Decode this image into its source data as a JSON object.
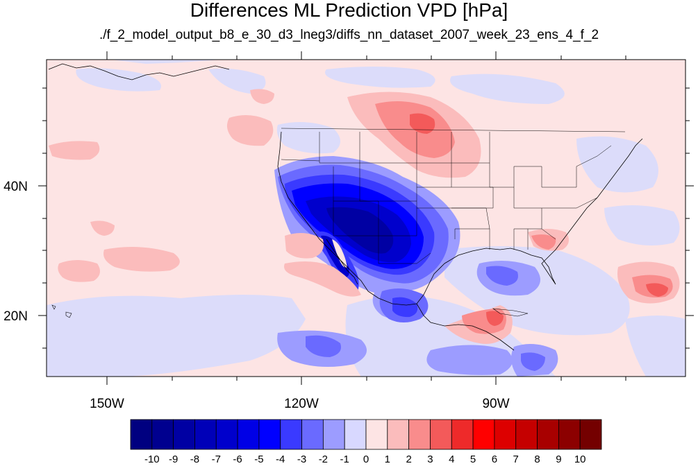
{
  "title": "Differences ML Prediction VPD [hPa]",
  "subtitle": "./f_2_model_output_b8_e_30_d3_lneg3/diffs_nn_dataset_2007_week_23_ens_4_f_2",
  "map": {
    "x_ticks": [
      "150W",
      "120W",
      "90W"
    ],
    "y_ticks": [
      "40N",
      "20N"
    ],
    "background_color": "#fde4e4"
  },
  "colorbar": {
    "labels": [
      "-10",
      "-9",
      "-8",
      "-7",
      "-6",
      "-5",
      "-4",
      "-3",
      "-2",
      "-1",
      "0",
      "1",
      "2",
      "3",
      "4",
      "5",
      "6",
      "7",
      "8",
      "9",
      "10"
    ],
    "colors": [
      "#000080",
      "#00008f",
      "#0000a3",
      "#0000b8",
      "#0000cc",
      "#0000e6",
      "#0000ff",
      "#3a3aff",
      "#6a6aff",
      "#9c9cff",
      "#d8d8ff",
      "#fde4e4",
      "#fbbcbc",
      "#f98c8c",
      "#f35a5a",
      "#ee2a2a",
      "#ff0000",
      "#dd0000",
      "#c50000",
      "#a80000",
      "#8c0000",
      "#740000"
    ]
  }
}
